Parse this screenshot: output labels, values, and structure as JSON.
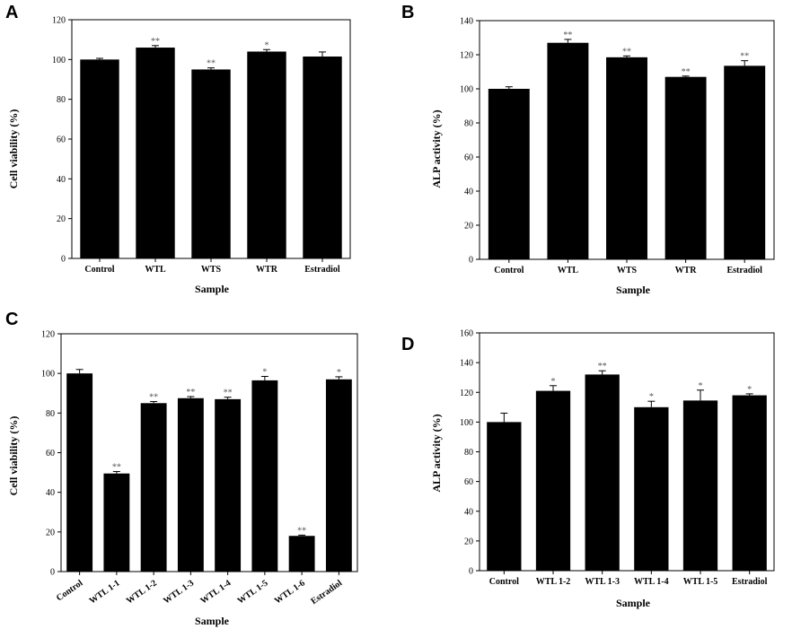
{
  "chart_data": [
    {
      "panel": "A",
      "type": "bar",
      "categories": [
        "Control",
        "WTL",
        "WTS",
        "WTR",
        "Estradiol"
      ],
      "values": [
        100,
        106,
        95,
        104,
        101.5
      ],
      "errors": [
        0.6,
        1.0,
        0.8,
        1.0,
        2.3
      ],
      "significance": [
        "",
        "**",
        "**",
        "*",
        ""
      ],
      "xlabel": "Sample",
      "ylabel": "Cell viability (%)",
      "ylim": [
        0,
        120
      ],
      "yticks": [
        "0",
        "20",
        "40",
        "60",
        "80",
        "100",
        "120"
      ],
      "rotate_labels": false
    },
    {
      "panel": "B",
      "type": "bar",
      "categories": [
        "Control",
        "WTL",
        "WTS",
        "WTR",
        "Estradiol"
      ],
      "values": [
        100,
        127,
        118.5,
        107,
        113.5
      ],
      "errors": [
        1.2,
        2.0,
        0.8,
        0.5,
        3.0
      ],
      "significance": [
        "",
        "**",
        "**",
        "**",
        "**"
      ],
      "xlabel": "Sample",
      "ylabel": "ALP activity (%)",
      "ylim": [
        0,
        140
      ],
      "yticks": [
        "0",
        "20",
        "40",
        "60",
        "80",
        "100",
        "120",
        "140"
      ],
      "rotate_labels": false
    },
    {
      "panel": "C",
      "type": "bar",
      "categories": [
        "Control",
        "WTL 1-1",
        "WTL 1-2",
        "WTL 1-3",
        "WTL 1-4",
        "WTL 1-5",
        "WTL 1-6",
        "Estradiol"
      ],
      "values": [
        100,
        49.5,
        85,
        87.5,
        87,
        96.5,
        18,
        97
      ],
      "errors": [
        2.0,
        1.0,
        0.8,
        0.8,
        1.0,
        2.0,
        0.4,
        1.3
      ],
      "significance": [
        "",
        "**",
        "**",
        "**",
        "**",
        "*",
        "**",
        "*"
      ],
      "xlabel": "Sample",
      "ylabel": "Cell viability (%)",
      "ylim": [
        0,
        120
      ],
      "yticks": [
        "0",
        "20",
        "40",
        "60",
        "80",
        "100",
        "120"
      ],
      "rotate_labels": true
    },
    {
      "panel": "D",
      "type": "bar",
      "categories": [
        "Control",
        "WTL 1-2",
        "WTL 1-3",
        "WTL 1-4",
        "WTL 1-5",
        "Estradiol"
      ],
      "values": [
        100,
        121,
        132,
        110,
        114.5,
        118
      ],
      "errors": [
        6.0,
        3.5,
        2.5,
        4.0,
        7.0,
        1.0
      ],
      "significance": [
        "",
        "*",
        "**",
        "*",
        "*",
        "*"
      ],
      "xlabel": "Sample",
      "ylabel": "ALP activity (%)",
      "ylim": [
        0,
        160
      ],
      "yticks": [
        "0",
        "20",
        "40",
        "60",
        "80",
        "100",
        "120",
        "140",
        "160"
      ],
      "rotate_labels": false
    }
  ]
}
